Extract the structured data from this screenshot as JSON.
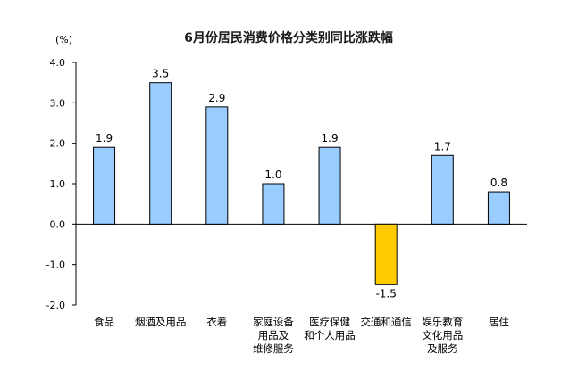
{
  "chart_data": {
    "type": "bar",
    "title": "6月份居民消费价格分类别同比涨跌幅",
    "unit_label": "(%)",
    "ylim": [
      -2.0,
      4.0
    ],
    "yticks": [
      "4.0",
      "3.0",
      "2.0",
      "1.0",
      "0.0",
      "-1.0",
      "-2.0"
    ],
    "grid": false,
    "categories": [
      [
        "食品"
      ],
      [
        "烟酒及用品"
      ],
      [
        "衣着"
      ],
      [
        "家庭设备",
        "用品及",
        "维修服务"
      ],
      [
        "医疗保健",
        "和个人用品"
      ],
      [
        "交通和通信"
      ],
      [
        "娱乐教育",
        "文化用品",
        "及服务"
      ],
      [
        "居住"
      ]
    ],
    "values": [
      1.9,
      3.5,
      2.9,
      1.0,
      1.9,
      -1.5,
      1.7,
      0.8
    ],
    "value_labels": [
      "1.9",
      "3.5",
      "2.9",
      "1.0",
      "1.9",
      "-1.5",
      "1.7",
      "0.8"
    ],
    "colors": {
      "positive": "#99ccff",
      "negative": "#ffcc00",
      "stroke": "#000000"
    }
  }
}
